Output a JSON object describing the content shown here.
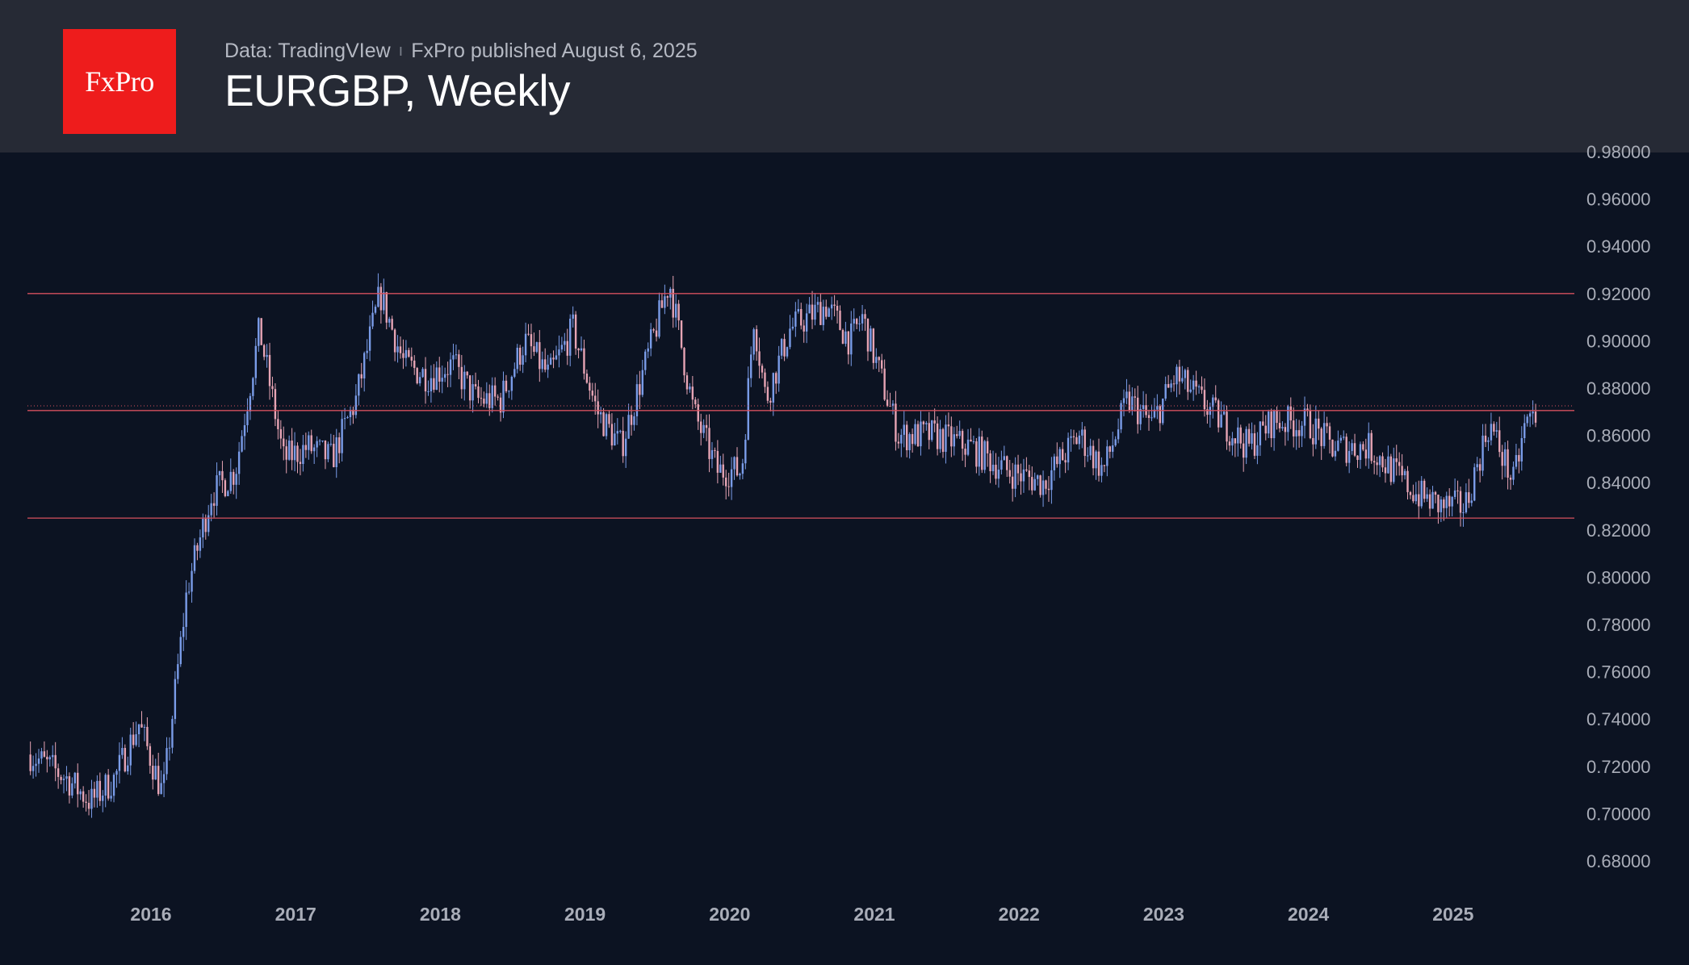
{
  "header": {
    "logo_text": "FxPro",
    "source": "Data: TradingVIew",
    "separator": "ı",
    "publisher": "FxPro published August 6, 2025",
    "title": "EURGBP, Weekly"
  },
  "colors": {
    "background": "#0c1322",
    "header_bg": "#262a35",
    "logo_red": "#ee1c1c",
    "candle_up": "#7a9ce8",
    "candle_down": "#e6a4b4",
    "level_line": "#d6505e"
  },
  "chart_data": {
    "type": "candlestick",
    "title": "EURGBP, Weekly",
    "ylim": [
      0.67,
      0.98
    ],
    "y_ticks": [
      "0.68000",
      "0.70000",
      "0.72000",
      "0.74000",
      "0.76000",
      "0.78000",
      "0.80000",
      "0.82000",
      "0.84000",
      "0.86000",
      "0.88000",
      "0.90000",
      "0.92000",
      "0.94000",
      "0.96000",
      "0.98000"
    ],
    "y_tick_values": [
      0.68,
      0.7,
      0.72,
      0.74,
      0.76,
      0.78,
      0.8,
      0.82,
      0.84,
      0.86,
      0.88,
      0.9,
      0.92,
      0.94,
      0.96,
      0.98
    ],
    "x_ticks": [
      "2016",
      "2017",
      "2018",
      "2019",
      "2020",
      "2021",
      "2022",
      "2023",
      "2024",
      "2025"
    ],
    "x_tick_years": [
      2016,
      2017,
      2018,
      2019,
      2020,
      2021,
      2022,
      2023,
      2024,
      2025
    ],
    "x_range": [
      "2015-03",
      "2025-08"
    ],
    "horizontal_levels": [
      0.92,
      0.8705,
      0.825
    ],
    "current_price_line": 0.8725,
    "grid": false,
    "price_path": [
      [
        "2015-03",
        0.725
      ],
      [
        "2015-06",
        0.715
      ],
      [
        "2015-08",
        0.705
      ],
      [
        "2015-10",
        0.715
      ],
      [
        "2015-12",
        0.738
      ],
      [
        "2016-02",
        0.708
      ],
      [
        "2016-04",
        0.795
      ],
      [
        "2016-06",
        0.835
      ],
      [
        "2016-08",
        0.845
      ],
      [
        "2016-10",
        0.905
      ],
      [
        "2016-12",
        0.85
      ],
      [
        "2017-02",
        0.855
      ],
      [
        "2017-04",
        0.85
      ],
      [
        "2017-06",
        0.875
      ],
      [
        "2017-08",
        0.92
      ],
      [
        "2017-10",
        0.89
      ],
      [
        "2017-12",
        0.885
      ],
      [
        "2018-02",
        0.89
      ],
      [
        "2018-04",
        0.875
      ],
      [
        "2018-06",
        0.875
      ],
      [
        "2018-08",
        0.9
      ],
      [
        "2018-10",
        0.885
      ],
      [
        "2018-12",
        0.905
      ],
      [
        "2019-02",
        0.87
      ],
      [
        "2019-04",
        0.855
      ],
      [
        "2019-06",
        0.89
      ],
      [
        "2019-08",
        0.925
      ],
      [
        "2019-10",
        0.87
      ],
      [
        "2019-12",
        0.845
      ],
      [
        "2020-02",
        0.845
      ],
      [
        "2020-03",
        0.91
      ],
      [
        "2020-04",
        0.875
      ],
      [
        "2020-06",
        0.905
      ],
      [
        "2020-09",
        0.915
      ],
      [
        "2020-11",
        0.9
      ],
      [
        "2020-12",
        0.91
      ],
      [
        "2021-03",
        0.86
      ],
      [
        "2021-06",
        0.86
      ],
      [
        "2021-09",
        0.855
      ],
      [
        "2021-12",
        0.845
      ],
      [
        "2022-03",
        0.84
      ],
      [
        "2022-06",
        0.86
      ],
      [
        "2022-08",
        0.845
      ],
      [
        "2022-10",
        0.875
      ],
      [
        "2022-12",
        0.865
      ],
      [
        "2023-02",
        0.885
      ],
      [
        "2023-05",
        0.87
      ],
      [
        "2023-08",
        0.855
      ],
      [
        "2023-10",
        0.866
      ],
      [
        "2024-01",
        0.865
      ],
      [
        "2024-03",
        0.855
      ],
      [
        "2024-06",
        0.855
      ],
      [
        "2024-08",
        0.845
      ],
      [
        "2024-10",
        0.835
      ],
      [
        "2024-12",
        0.83
      ],
      [
        "2025-02",
        0.83
      ],
      [
        "2025-04",
        0.865
      ],
      [
        "2025-06",
        0.84
      ],
      [
        "2025-07",
        0.865
      ],
      [
        "2025-08",
        0.87
      ]
    ]
  }
}
